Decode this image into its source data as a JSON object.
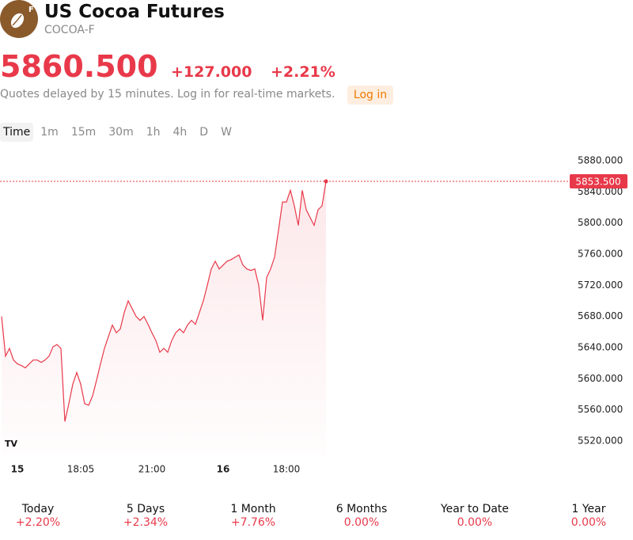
{
  "header": {
    "title": "US Cocoa Futures",
    "symbol": "COCOA-F",
    "price": "5860.500",
    "change": "+127.000",
    "change_percent": "+2.21%",
    "delay_note": "Quotes delayed by 15 minutes. Log in for real-time markets.",
    "login": "Log in"
  },
  "timeframes": [
    "Time",
    "1m",
    "15m",
    "30m",
    "1h",
    "4h",
    "D",
    "W"
  ],
  "chart_data": {
    "type": "line",
    "categories": [
      null,
      null,
      null,
      null,
      "15",
      null,
      null,
      null,
      null,
      null,
      null,
      null,
      null,
      null,
      null,
      null,
      null,
      null,
      null,
      null,
      "18:05",
      null,
      null,
      null,
      null,
      null,
      null,
      null,
      null,
      null,
      null,
      null,
      null,
      null,
      null,
      null,
      null,
      null,
      "21:00",
      null,
      null,
      null,
      null,
      null,
      null,
      null,
      null,
      null,
      null,
      null,
      null,
      null,
      null,
      null,
      null,
      null,
      "16",
      null,
      null,
      null,
      null,
      null,
      null,
      null,
      null,
      null,
      null,
      null,
      null,
      null,
      null,
      null,
      "18:00",
      null,
      null,
      null,
      null,
      null,
      null,
      null,
      null,
      null,
      null
    ],
    "series": [
      {
        "name": "COCOA-F",
        "color": "#e8394a",
        "values": [
          5680,
          5629,
          5639,
          5624,
          5619,
          5617,
          5614,
          5619,
          5624,
          5624,
          5621,
          5624,
          5629,
          5641,
          5644,
          5639,
          5545,
          5568,
          5593,
          5608,
          5593,
          5568,
          5566,
          5578,
          5598,
          5619,
          5639,
          5654,
          5669,
          5659,
          5664,
          5685,
          5700,
          5690,
          5680,
          5675,
          5680,
          5670,
          5659,
          5649,
          5634,
          5639,
          5634,
          5649,
          5659,
          5664,
          5659,
          5669,
          5675,
          5670,
          5685,
          5700,
          5720,
          5741,
          5751,
          5741,
          5746,
          5751,
          5753,
          5756,
          5759,
          5746,
          5741,
          5739,
          5741,
          5720,
          5675,
          5730,
          5741,
          5756,
          5791,
          5827,
          5827,
          5842,
          5822,
          5797,
          5842,
          5817,
          5807,
          5797,
          5817,
          5822,
          5853.5
        ]
      }
    ],
    "ylim": [
      5520,
      5880
    ],
    "yticks": [
      {
        "value": 5520,
        "label": "5520.000"
      },
      {
        "value": 5560,
        "label": "5560.000"
      },
      {
        "value": 5600,
        "label": "5600.000"
      },
      {
        "value": 5640,
        "label": "5640.000"
      },
      {
        "value": 5680,
        "label": "5680.000"
      },
      {
        "value": 5720,
        "label": "5720.000"
      },
      {
        "value": 5760,
        "label": "5760.000"
      },
      {
        "value": 5800,
        "label": "5800.000"
      },
      {
        "value": 5840,
        "label": "5840.000"
      },
      {
        "value": 5880,
        "label": "5880.000"
      }
    ],
    "last_price": {
      "value": 5853.5,
      "label": "5853.500"
    }
  },
  "performance": [
    {
      "period": "Today",
      "change": "+2.20%"
    },
    {
      "period": "5 Days",
      "change": "+2.34%"
    },
    {
      "period": "1 Month",
      "change": "+7.76%"
    },
    {
      "period": "6 Months",
      "change": "0.00%"
    },
    {
      "period": "Year to Date",
      "change": "0.00%"
    },
    {
      "period": "1 Year",
      "change": "0.00%"
    }
  ]
}
